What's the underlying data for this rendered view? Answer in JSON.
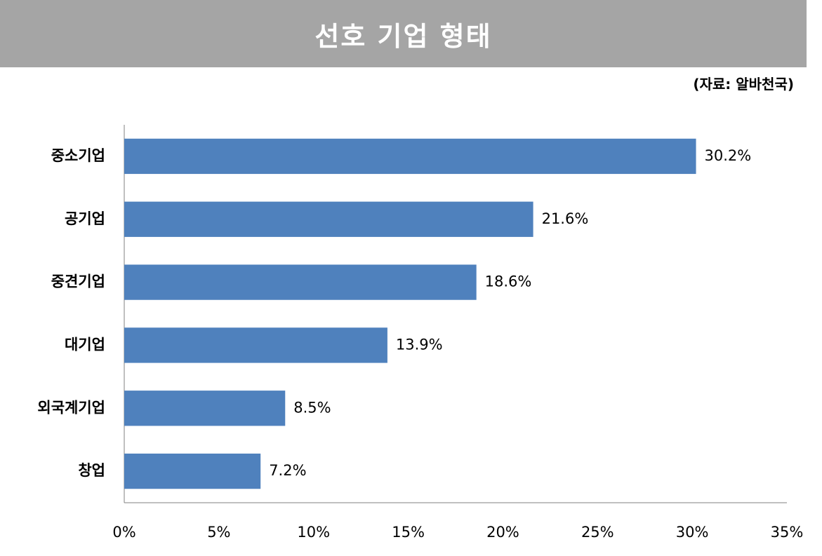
{
  "header": {
    "title": "선호 기업 형태",
    "source": "(자료: 알바천국)"
  },
  "colors": {
    "bar": "#4f81bd",
    "title_bg": "#a5a5a5",
    "axis": "#808080"
  },
  "chart_data": {
    "type": "bar",
    "orientation": "horizontal",
    "title": "선호 기업 형태",
    "categories": [
      "중소기업",
      "공기업",
      "중견기업",
      "대기업",
      "외국계기업",
      "창업"
    ],
    "values": [
      30.2,
      21.6,
      18.6,
      13.9,
      8.5,
      7.2
    ],
    "value_labels": [
      "30.2%",
      "21.6%",
      "18.6%",
      "13.9%",
      "8.5%",
      "7.2%"
    ],
    "xlim": [
      0,
      35
    ],
    "x_ticks": [
      0,
      5,
      10,
      15,
      20,
      25,
      30,
      35
    ],
    "x_tick_labels": [
      "0%",
      "5%",
      "10%",
      "15%",
      "20%",
      "25%",
      "30%",
      "35%"
    ],
    "xlabel": "",
    "ylabel": "",
    "grid": false,
    "legend": "none"
  }
}
